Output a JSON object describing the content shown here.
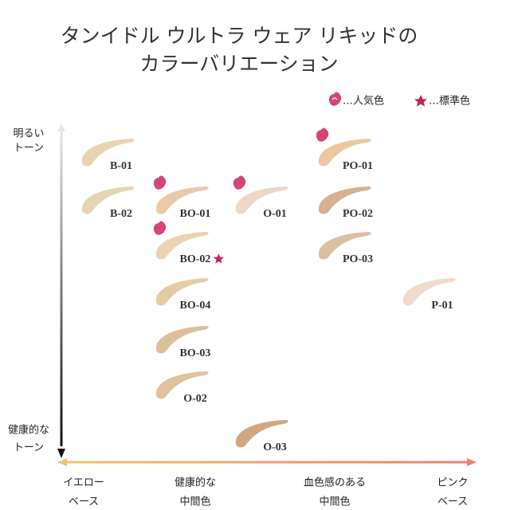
{
  "title": [
    "タンイドル ウルトラ ウェア リキッドの",
    "カラーバリエーション"
  ],
  "legend": {
    "popular": "…人気色",
    "standard": "…標準色"
  },
  "y_axis": {
    "top": [
      "明るい",
      "トーン"
    ],
    "bottom": [
      "健康的な",
      "トーン"
    ]
  },
  "x_axis": {
    "labels": [
      [
        "イエロー",
        "ベース"
      ],
      [
        "健康的な",
        "中間色"
      ],
      [
        "血色感のある",
        "中間色"
      ],
      [
        "ピンク",
        "ベース"
      ]
    ]
  },
  "shades": [
    {
      "label": "B-01",
      "color": "#e9d4b2",
      "popular": false,
      "standard": false
    },
    {
      "label": "B-02",
      "color": "#e6d5b4",
      "popular": false,
      "standard": false
    },
    {
      "label": "BO-01",
      "color": "#ebc9ac",
      "popular": true,
      "standard": false
    },
    {
      "label": "BO-02",
      "color": "#ecd2b0",
      "popular": true,
      "standard": true
    },
    {
      "label": "BO-04",
      "color": "#e5cba4",
      "popular": false,
      "standard": false
    },
    {
      "label": "BO-03",
      "color": "#dcc09a",
      "popular": false,
      "standard": false
    },
    {
      "label": "O-02",
      "color": "#e0c29c",
      "popular": false,
      "standard": false
    },
    {
      "label": "O-01",
      "color": "#f0d6c4",
      "popular": true,
      "standard": false
    },
    {
      "label": "O-03",
      "color": "#d2a67f",
      "popular": false,
      "standard": false
    },
    {
      "label": "PO-01",
      "color": "#efc79e",
      "popular": true,
      "standard": false
    },
    {
      "label": "PO-02",
      "color": "#d8b190",
      "popular": false,
      "standard": false
    },
    {
      "label": "PO-03",
      "color": "#dcbf9e",
      "popular": false,
      "standard": false
    },
    {
      "label": "P-01",
      "color": "#f2dace",
      "popular": false,
      "standard": false
    }
  ]
}
